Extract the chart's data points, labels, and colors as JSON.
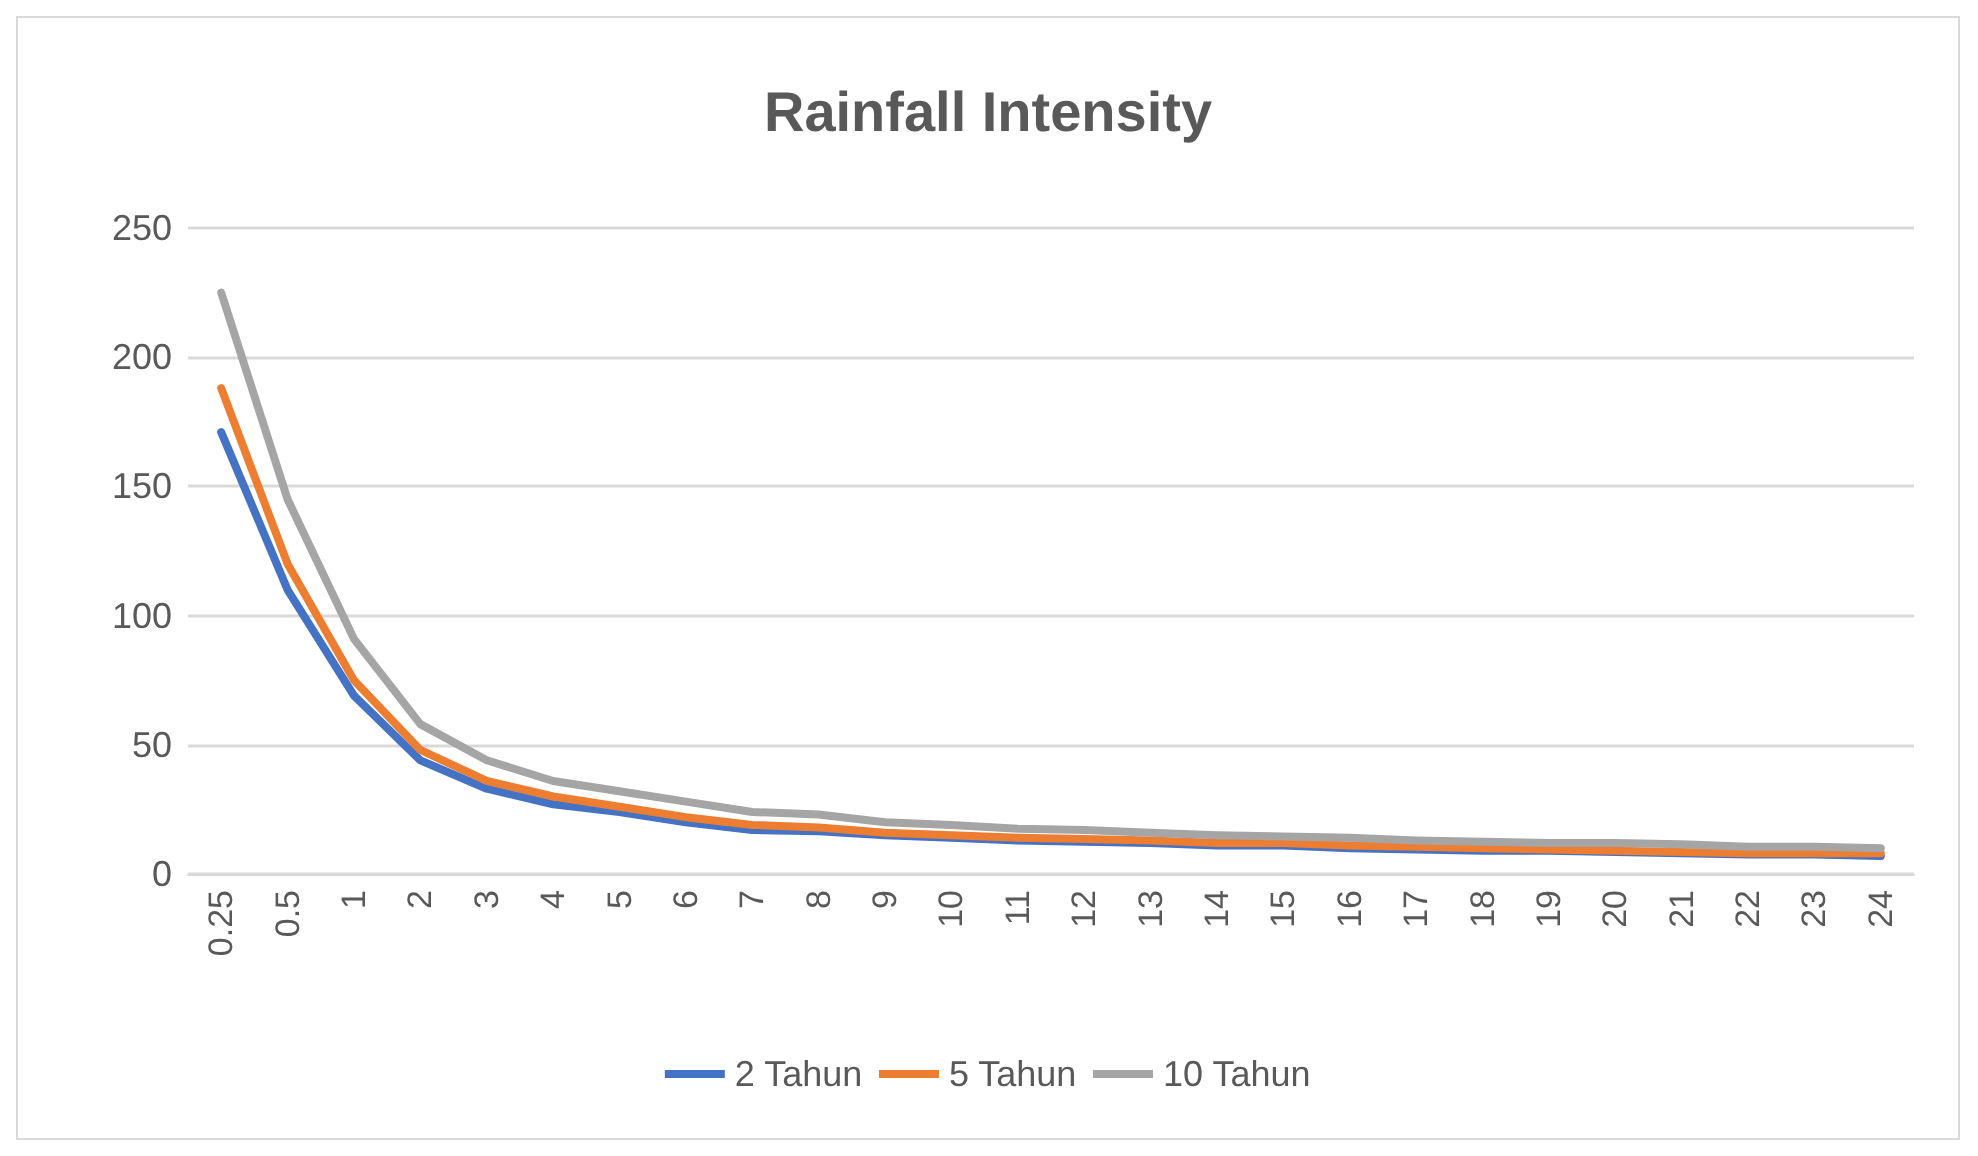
{
  "chart_data": {
    "type": "line",
    "title": "Rainfall Intensity",
    "categories": [
      "0.25",
      "0.5",
      "1",
      "2",
      "3",
      "4",
      "5",
      "6",
      "7",
      "8",
      "9",
      "10",
      "11",
      "12",
      "13",
      "14",
      "15",
      "16",
      "17",
      "18",
      "19",
      "20",
      "21",
      "22",
      "23",
      "24"
    ],
    "series": [
      {
        "name": "2 Tahun",
        "color": "#4472c4",
        "values": [
          171,
          110,
          69,
          44,
          33,
          27,
          24,
          20,
          17,
          16.5,
          15,
          14,
          13,
          12.5,
          12,
          11,
          11,
          10,
          9.5,
          9,
          9,
          8.5,
          8,
          7.5,
          7.5,
          7
        ]
      },
      {
        "name": "5 Tahun",
        "color": "#ed7d31",
        "values": [
          188,
          120,
          75,
          48,
          36,
          30,
          26,
          22,
          19,
          18,
          16,
          15,
          14,
          13.5,
          13,
          12,
          12,
          11,
          10.5,
          10,
          9.5,
          9,
          8.5,
          8,
          8,
          8
        ]
      },
      {
        "name": "10 Tahun",
        "color": "#a5a5a5",
        "values": [
          225,
          145,
          91,
          58,
          44,
          36,
          32,
          28,
          24,
          23,
          20,
          19,
          17.5,
          17,
          16,
          15,
          14.5,
          14,
          13,
          12.5,
          12,
          12,
          11.5,
          10.5,
          10.5,
          10
        ]
      }
    ],
    "ylim": [
      0,
      250
    ],
    "yticks": [
      0,
      50,
      100,
      150,
      200,
      250
    ],
    "grid": "y",
    "legend": "bottom",
    "marker": "none",
    "line_style": "solid"
  }
}
